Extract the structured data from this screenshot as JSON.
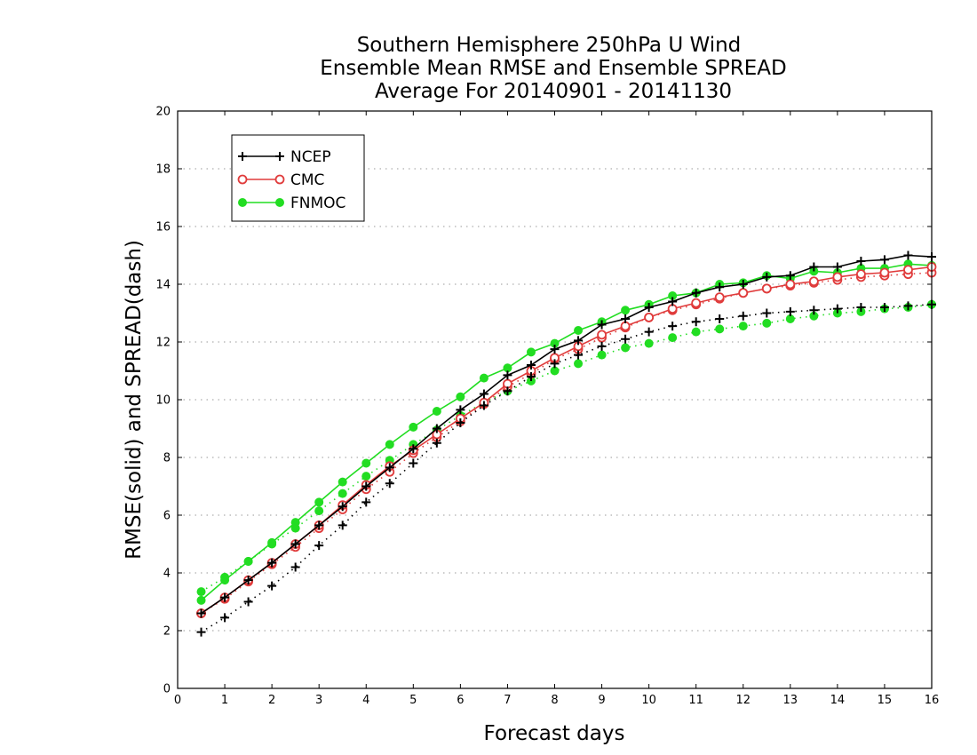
{
  "chart_data": {
    "type": "line",
    "title_lines": [
      "Southern Hemisphere 250hPa U Wind",
      "Ensemble Mean RMSE and Ensemble SPREAD",
      "Average For 20140901 - 20141130"
    ],
    "xlabel": "Forecast days",
    "ylabel": "RMSE(solid) and SPREAD(dash)",
    "xlim": [
      0,
      16
    ],
    "ylim": [
      0,
      20
    ],
    "xticks": [
      0,
      1,
      2,
      3,
      4,
      5,
      6,
      7,
      8,
      9,
      10,
      11,
      12,
      13,
      14,
      15,
      16
    ],
    "yticks": [
      0,
      2,
      4,
      6,
      8,
      10,
      12,
      14,
      16,
      18,
      20
    ],
    "grid": true,
    "legend_position": "top-left",
    "x": [
      0.5,
      1,
      1.5,
      2,
      2.5,
      3,
      3.5,
      4,
      4.5,
      5,
      5.5,
      6,
      6.5,
      7,
      7.5,
      8,
      8.5,
      9,
      9.5,
      10,
      10.5,
      11,
      11.5,
      12,
      12.5,
      13,
      13.5,
      14,
      14.5,
      15,
      15.5,
      16
    ],
    "series": [
      {
        "name": "NCEP",
        "color": "#000000",
        "marker": "plus",
        "rmse": [
          2.6,
          3.15,
          3.75,
          4.35,
          5.0,
          5.65,
          6.3,
          7.0,
          7.65,
          8.3,
          9.0,
          9.65,
          10.2,
          10.85,
          11.2,
          11.75,
          12.05,
          12.6,
          12.8,
          13.2,
          13.4,
          13.7,
          13.9,
          14.0,
          14.25,
          14.3,
          14.6,
          14.6,
          14.8,
          14.85,
          15.0,
          14.95
        ],
        "spread": [
          1.95,
          2.45,
          3.0,
          3.55,
          4.2,
          4.95,
          5.65,
          6.45,
          7.1,
          7.8,
          8.5,
          9.2,
          9.8,
          10.3,
          10.8,
          11.25,
          11.55,
          11.85,
          12.1,
          12.35,
          12.55,
          12.7,
          12.8,
          12.9,
          13.0,
          13.05,
          13.1,
          13.15,
          13.2,
          13.2,
          13.25,
          13.3
        ]
      },
      {
        "name": "CMC",
        "color": "#e03c3c",
        "marker": "open-circle",
        "rmse": [
          2.6,
          3.15,
          3.75,
          4.35,
          5.0,
          5.65,
          6.35,
          7.05,
          7.7,
          8.25,
          8.8,
          9.35,
          9.9,
          10.55,
          11.0,
          11.45,
          11.85,
          12.25,
          12.55,
          12.85,
          13.15,
          13.35,
          13.55,
          13.7,
          13.85,
          14.0,
          14.1,
          14.25,
          14.35,
          14.4,
          14.5,
          14.6
        ],
        "spread": [
          2.6,
          3.1,
          3.7,
          4.3,
          4.9,
          5.55,
          6.2,
          6.9,
          7.5,
          8.15,
          8.7,
          9.25,
          9.85,
          10.45,
          10.9,
          11.4,
          11.75,
          12.15,
          12.5,
          12.85,
          13.1,
          13.3,
          13.5,
          13.7,
          13.85,
          13.95,
          14.05,
          14.15,
          14.25,
          14.3,
          14.35,
          14.4
        ]
      },
      {
        "name": "FNMOC",
        "color": "#22dd22",
        "marker": "filled-circle",
        "rmse": [
          3.05,
          3.75,
          4.4,
          5.05,
          5.75,
          6.45,
          7.15,
          7.8,
          8.45,
          9.05,
          9.6,
          10.1,
          10.75,
          11.1,
          11.65,
          11.95,
          12.4,
          12.7,
          13.1,
          13.3,
          13.6,
          13.7,
          14.0,
          14.05,
          14.3,
          14.2,
          14.45,
          14.4,
          14.55,
          14.55,
          14.7,
          14.65
        ],
        "spread": [
          3.35,
          3.85,
          4.4,
          5.0,
          5.55,
          6.15,
          6.75,
          7.35,
          7.9,
          8.45,
          8.95,
          9.45,
          9.9,
          10.3,
          10.65,
          11.0,
          11.25,
          11.55,
          11.8,
          11.95,
          12.15,
          12.35,
          12.45,
          12.55,
          12.65,
          12.8,
          12.9,
          13.0,
          13.05,
          13.15,
          13.2,
          13.3
        ]
      }
    ]
  }
}
